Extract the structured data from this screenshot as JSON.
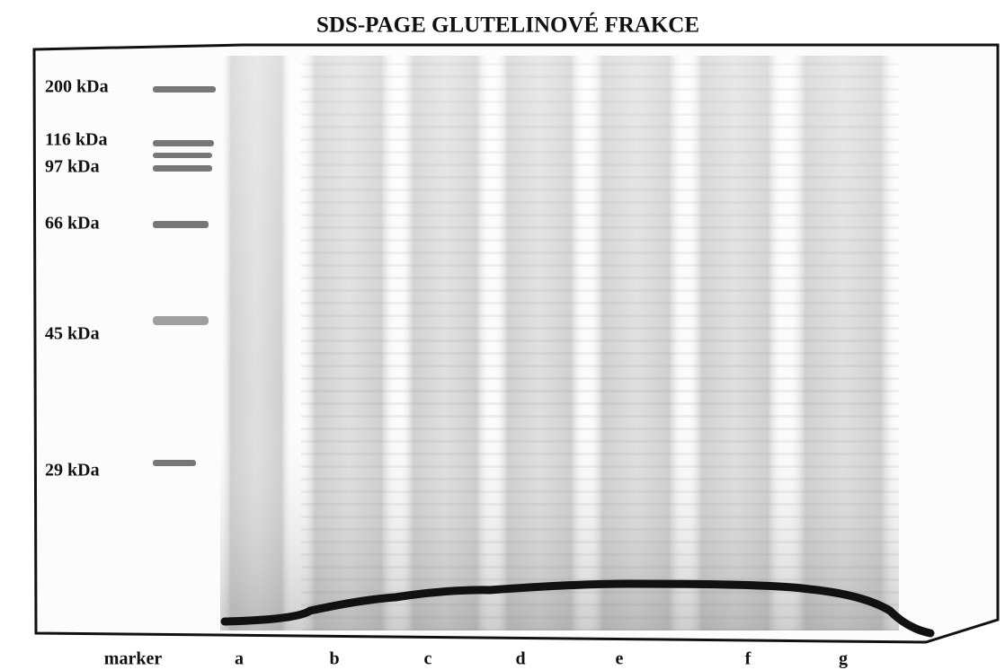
{
  "title": "SDS-PAGE GLUTELINOVÉ FRAKCE",
  "marker_labels": [
    "200 kDa",
    "116 kDa",
    "97 kDa",
    "66 kDa",
    "45 kDa",
    "29 kDa"
  ],
  "lane_labels": [
    "marker",
    "a",
    "b",
    "c",
    "d",
    "e",
    "f",
    "g"
  ]
}
